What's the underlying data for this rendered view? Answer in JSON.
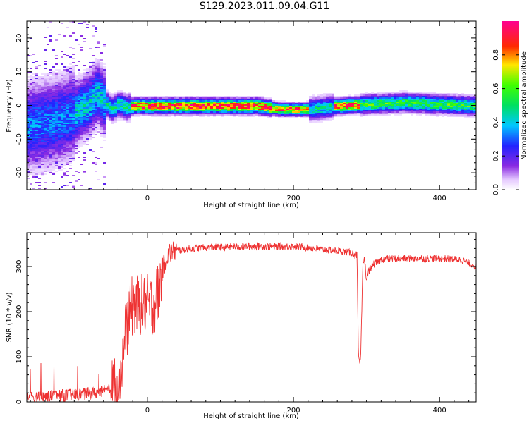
{
  "title": "S129.2023.011.09.04.G11",
  "colors": {
    "snr_line": "#ee3333",
    "axis": "#000000",
    "background": "#ffffff"
  },
  "chart_data": [
    {
      "type": "heatmap",
      "xlabel": "Height of straight line (km)",
      "ylabel": "Frequency (Hz)",
      "xlim": [
        -165,
        450
      ],
      "ylim": [
        -25,
        25
      ],
      "x_ticks": [
        0,
        200,
        400
      ],
      "y_ticks": [
        -20,
        -10,
        0,
        10,
        20
      ],
      "colorbar": {
        "label": "Normalized spectral amplitude",
        "range": [
          0,
          1
        ],
        "ticks": [
          "0.0",
          "0.2",
          "0.4",
          "0.6",
          "0.8"
        ],
        "colormap": "rainbow (white-violet-blue-cyan-green-yellow-red-magenta)"
      },
      "ridge": {
        "description": "Dominant frequency ridge near 0 Hz above ~-20 km; broad diffuse scatter below -60 km",
        "x": [
          -165,
          -140,
          -120,
          -100,
          -80,
          -70,
          -60,
          -50,
          -40,
          -30,
          -20,
          0,
          100,
          150,
          180,
          220,
          240,
          260,
          300,
          350,
          400,
          450
        ],
        "freq": [
          -6,
          -5,
          -4,
          -2,
          1,
          4,
          1,
          -1,
          0.5,
          -0.5,
          0,
          0,
          0,
          0,
          -1,
          -1,
          -0.5,
          0,
          0.5,
          1,
          0.5,
          0
        ]
      }
    },
    {
      "type": "line",
      "xlabel": "Height of straight line (km)",
      "ylabel": "SNR (10 * v/v)",
      "xlim": [
        -165,
        450
      ],
      "ylim": [
        0,
        375
      ],
      "x_ticks": [
        0,
        200,
        400
      ],
      "y_ticks": [
        0,
        100,
        200,
        300
      ],
      "series": [
        {
          "x": [
            -165,
            -140,
            -120,
            -100,
            -80,
            -60,
            -50,
            -40,
            -35,
            -30,
            -25,
            -20,
            -15,
            -10,
            -5,
            0,
            5,
            10,
            15,
            20,
            25,
            30,
            40,
            60,
            80,
            100,
            120,
            150,
            180,
            200,
            220,
            240,
            260,
            280,
            287,
            288,
            289,
            290,
            292,
            295,
            297,
            300,
            303,
            307,
            310,
            315,
            320,
            330,
            360,
            400,
            430,
            450
          ],
          "y": [
            10,
            12,
            14,
            16,
            18,
            22,
            28,
            45,
            80,
            150,
            190,
            215,
            215,
            215,
            215,
            215,
            215,
            220,
            245,
            290,
            315,
            330,
            335,
            340,
            342,
            343,
            344,
            345,
            344,
            345,
            342,
            338,
            335,
            330,
            325,
            200,
            100,
            85,
            95,
            300,
            320,
            270,
            290,
            300,
            305,
            310,
            315,
            317,
            318,
            318,
            315,
            300
          ]
        }
      ]
    }
  ]
}
